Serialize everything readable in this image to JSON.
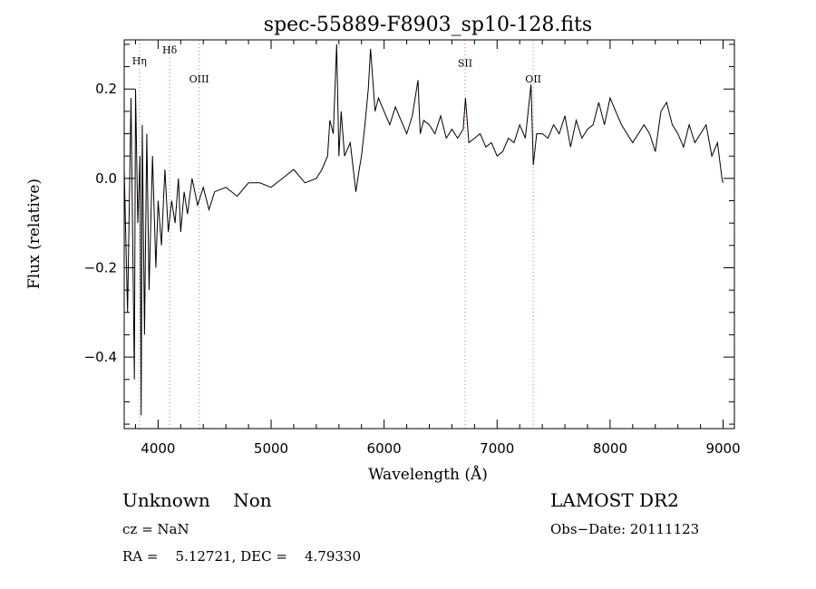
{
  "chart_data": {
    "type": "line",
    "title": "spec-55889-F8903_sp10-128.fits",
    "xlabel": "Wavelength (Å)",
    "ylabel": "Flux (relative)",
    "xlim": [
      3700,
      9100
    ],
    "ylim": [
      -0.56,
      0.31
    ],
    "xticks": [
      4000,
      5000,
      6000,
      7000,
      8000,
      9000
    ],
    "xtick_labels": [
      "4000",
      "5000",
      "6000",
      "7000",
      "8000",
      "9000"
    ],
    "yticks": [
      0.2,
      0.0,
      -0.2,
      -0.4
    ],
    "ytick_labels": [
      "0.2",
      "0.0",
      "−0.2",
      "−0.4"
    ],
    "spectral_lines": [
      {
        "label": "Hη",
        "wavelength": 3835,
        "label_y": 0.255
      },
      {
        "label": "Hδ",
        "wavelength": 4102,
        "label_y": 0.28
      },
      {
        "label": "OIII",
        "wavelength": 4363,
        "label_y": 0.215
      },
      {
        "label": "SII",
        "wavelength": 6717,
        "label_y": 0.25
      },
      {
        "label": "OII",
        "wavelength": 7320,
        "label_y": 0.215
      }
    ],
    "series": [
      {
        "name": "flux",
        "x": [
          3700,
          3730,
          3760,
          3790,
          3800,
          3820,
          3840,
          3850,
          3860,
          3880,
          3900,
          3920,
          3950,
          3980,
          4000,
          4030,
          4060,
          4090,
          4120,
          4150,
          4180,
          4200,
          4230,
          4260,
          4300,
          4350,
          4400,
          4450,
          4500,
          4600,
          4700,
          4800,
          4900,
          5000,
          5100,
          5200,
          5300,
          5400,
          5450,
          5500,
          5520,
          5550,
          5580,
          5600,
          5620,
          5650,
          5700,
          5750,
          5780,
          5800,
          5830,
          5860,
          5880,
          5900,
          5920,
          5950,
          6000,
          6050,
          6100,
          6150,
          6200,
          6250,
          6300,
          6320,
          6350,
          6400,
          6450,
          6500,
          6550,
          6600,
          6650,
          6700,
          6720,
          6750,
          6800,
          6850,
          6900,
          6950,
          7000,
          7050,
          7100,
          7150,
          7200,
          7250,
          7300,
          7320,
          7350,
          7400,
          7450,
          7500,
          7550,
          7600,
          7650,
          7700,
          7750,
          7800,
          7850,
          7900,
          7950,
          8000,
          8050,
          8100,
          8150,
          8200,
          8250,
          8300,
          8350,
          8400,
          8450,
          8500,
          8550,
          8600,
          8650,
          8700,
          8750,
          8800,
          8850,
          8900,
          8950,
          8990,
          9000
        ],
        "y": [
          0.02,
          -0.3,
          0.18,
          -0.45,
          0.2,
          -0.1,
          0.05,
          -0.53,
          0.12,
          -0.35,
          0.1,
          -0.25,
          0.05,
          -0.2,
          -0.05,
          -0.15,
          0.02,
          -0.12,
          -0.05,
          -0.1,
          0.0,
          -0.12,
          -0.03,
          -0.08,
          0.0,
          -0.06,
          -0.02,
          -0.07,
          -0.03,
          -0.02,
          -0.04,
          -0.01,
          -0.01,
          -0.02,
          0.0,
          0.02,
          -0.01,
          0.0,
          0.02,
          0.05,
          0.13,
          0.1,
          0.3,
          0.05,
          0.15,
          0.05,
          0.08,
          -0.03,
          0.02,
          0.05,
          0.12,
          0.2,
          0.29,
          0.22,
          0.15,
          0.18,
          0.15,
          0.12,
          0.16,
          0.13,
          0.1,
          0.14,
          0.22,
          0.1,
          0.13,
          0.12,
          0.1,
          0.14,
          0.09,
          0.11,
          0.09,
          0.11,
          0.18,
          0.08,
          0.09,
          0.1,
          0.07,
          0.08,
          0.05,
          0.06,
          0.09,
          0.08,
          0.12,
          0.09,
          0.21,
          0.03,
          0.1,
          0.1,
          0.09,
          0.12,
          0.1,
          0.14,
          0.07,
          0.13,
          0.09,
          0.11,
          0.12,
          0.17,
          0.12,
          0.18,
          0.15,
          0.12,
          0.1,
          0.08,
          0.1,
          0.12,
          0.1,
          0.06,
          0.15,
          0.17,
          0.12,
          0.1,
          0.07,
          0.12,
          0.08,
          0.1,
          0.12,
          0.05,
          0.08,
          0.0,
          -0.01
        ]
      }
    ]
  },
  "info": {
    "left_line1": "Unknown    Non",
    "cz": "cz = NaN",
    "radec": "RA =    5.12721, DEC =    4.79330",
    "survey": "LAMOST DR2",
    "obs_date": "Obs−Date: 20111123"
  }
}
